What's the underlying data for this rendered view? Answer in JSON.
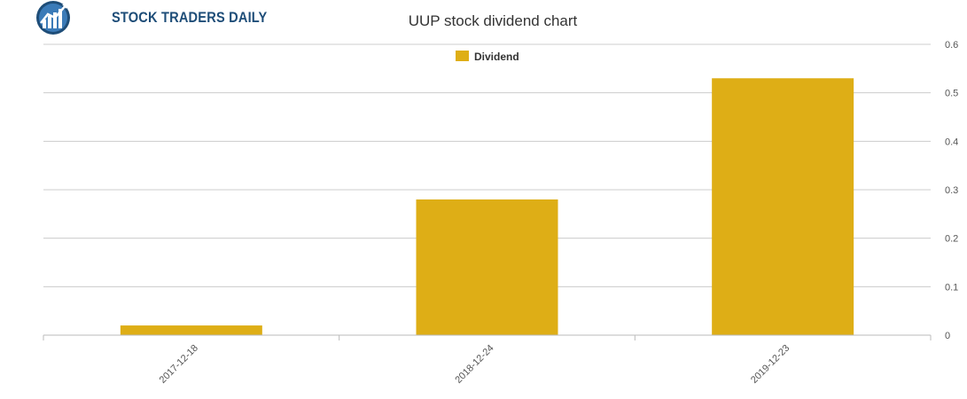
{
  "brand": {
    "name": "STOCK TRADERS DAILY",
    "icon": "globe-chart-logo-icon"
  },
  "colors": {
    "bar": "#deae16",
    "grid": "#cccccc",
    "axis": "#bbbbbb",
    "brand": "#1e4d78"
  },
  "chart_data": {
    "type": "bar",
    "title": "UUP stock dividend chart",
    "categories": [
      "2017-12-18",
      "2018-12-24",
      "2019-12-23"
    ],
    "series": [
      {
        "name": "Dividend",
        "values": [
          0.02,
          0.28,
          0.53
        ]
      }
    ],
    "yticks": [
      "0",
      "0.1",
      "0.2",
      "0.3",
      "0.4",
      "0.5",
      "0.6"
    ],
    "ylim": [
      0,
      0.6
    ],
    "y_axis_side": "right",
    "grid": true,
    "legend": "top-center"
  }
}
